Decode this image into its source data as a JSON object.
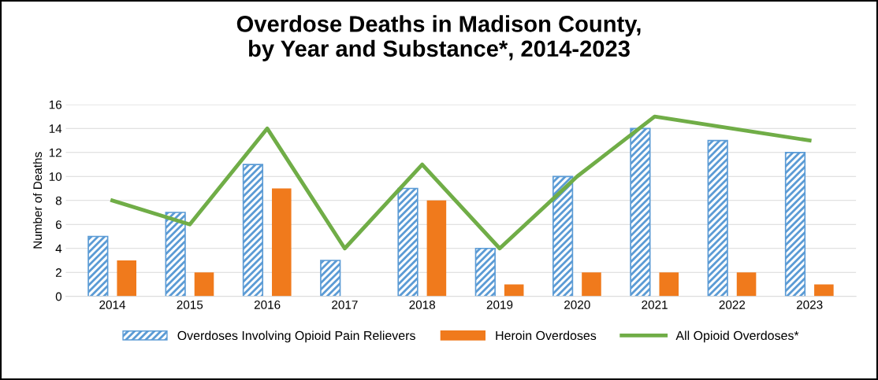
{
  "chart_data": {
    "type": "bar",
    "title": "Overdose Deaths in Madison County,\nby Year and Substance*, 2014-2023",
    "ylabel": "Number of Deaths",
    "categories": [
      "2014",
      "2015",
      "2016",
      "2017",
      "2018",
      "2019",
      "2020",
      "2021",
      "2022",
      "2023"
    ],
    "series": [
      {
        "name": "Overdoses Involving Opioid Pain Relievers",
        "color": "#5b9bd5",
        "values": [
          5,
          7,
          11,
          3,
          9,
          4,
          10,
          14,
          13,
          12
        ]
      },
      {
        "name": "Heroin Overdoses",
        "color": "#f07a1c",
        "values": [
          3,
          2,
          9,
          0,
          8,
          1,
          2,
          2,
          2,
          1
        ]
      },
      {
        "name": "All Opioid Overdoses*",
        "type": "line",
        "color": "#70ad47",
        "values": [
          8,
          6,
          14,
          4,
          11,
          4,
          10,
          15,
          14,
          13
        ]
      }
    ],
    "ylim": [
      0,
      16
    ],
    "yticks": [
      0,
      2,
      4,
      6,
      8,
      10,
      12,
      14,
      16
    ],
    "grid": "y",
    "legend": "bottom",
    "marker": "none",
    "line_style": "solid"
  }
}
